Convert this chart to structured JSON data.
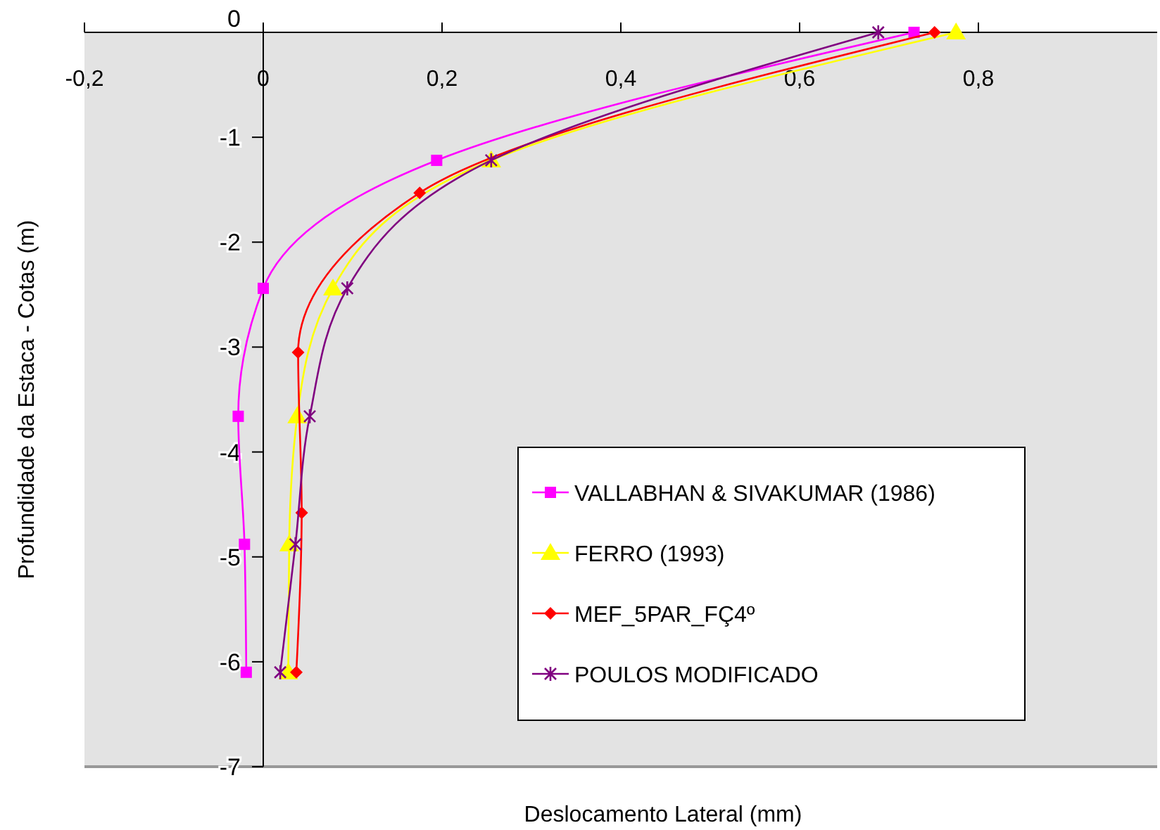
{
  "chart_data": {
    "type": "line",
    "xlabel": "Deslocamento Lateral (mm)",
    "ylabel": "Profundidade da Estaca - Cotas (m)",
    "xlim": [
      -0.2,
      1.0
    ],
    "xticks": [
      {
        "value": -0.2,
        "label": "-0,2"
      },
      0,
      {
        "value": 0.2,
        "label": "0,2"
      },
      {
        "value": 0.4,
        "label": "0,4"
      },
      {
        "value": 0.6,
        "label": "0,6"
      },
      {
        "value": 0.8,
        "label": "0,8"
      }
    ],
    "ylim": [
      -7,
      0
    ],
    "yticks": [
      -7,
      -6,
      -5,
      -4,
      -3,
      -2,
      -1,
      0
    ],
    "grid": false,
    "legend": "bottom right",
    "series": [
      {
        "name": "VALLABHAN & SIVAKUMAR (1986)",
        "color": "#ff00ff",
        "marker": "square",
        "x": [
          0.728,
          0.194,
          0.0,
          -0.028,
          -0.021,
          -0.019
        ],
        "values": [
          0,
          -1.22,
          -2.44,
          -3.66,
          -4.88,
          -6.1
        ]
      },
      {
        "name": "FERRO (1993)",
        "color": "#ffff00",
        "marker": "triangle",
        "x": [
          0.775,
          0.255,
          0.078,
          0.038,
          0.029,
          0.028
        ],
        "values": [
          0,
          -1.22,
          -2.44,
          -3.66,
          -4.88,
          -6.1
        ]
      },
      {
        "name": "MEF_5PAR_FÇ4º",
        "color": "#ff0000",
        "marker": "diamond",
        "x": [
          0.751,
          0.175,
          0.039,
          0.043,
          0.037
        ],
        "values": [
          0,
          -1.53,
          -3.05,
          -4.58,
          -6.1
        ]
      },
      {
        "name": "POULOS MODIFICADO",
        "color": "#800080",
        "marker": "cross",
        "x": [
          0.688,
          0.255,
          0.094,
          0.052,
          0.036,
          0.019
        ],
        "values": [
          0,
          -1.22,
          -2.44,
          -3.66,
          -4.88,
          -6.1
        ]
      }
    ]
  }
}
